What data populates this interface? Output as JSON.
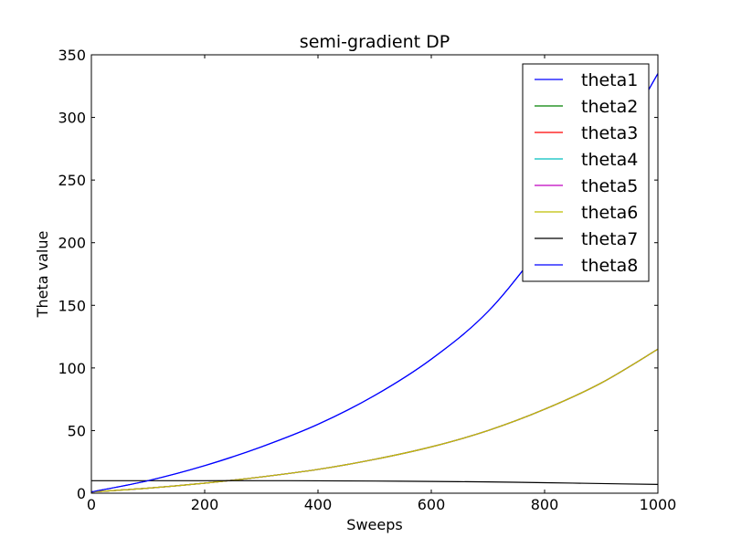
{
  "chart_data": {
    "type": "line",
    "title": "semi-gradient DP",
    "xlabel": "Sweeps",
    "ylabel": "Theta value",
    "xlim": [
      0,
      1000
    ],
    "ylim": [
      0,
      350
    ],
    "xticks": [
      0,
      200,
      400,
      600,
      800,
      1000
    ],
    "yticks": [
      0,
      50,
      100,
      150,
      200,
      250,
      300,
      350
    ],
    "xtick_labels": [
      "0",
      "200",
      "400",
      "600",
      "800",
      "1000"
    ],
    "ytick_labels": [
      "0",
      "50",
      "100",
      "150",
      "200",
      "250",
      "300",
      "350"
    ],
    "grid": false,
    "legend_position": "top-right",
    "x": [
      0,
      100,
      200,
      300,
      400,
      500,
      600,
      700,
      800,
      900,
      1000
    ],
    "series": [
      {
        "name": "theta1",
        "color": "#0000ff",
        "values": [
          1,
          10,
          22,
          37,
          55,
          78,
          107,
          145,
          200,
          258,
          335
        ]
      },
      {
        "name": "theta2",
        "color": "#008000",
        "values": [
          1,
          4,
          8,
          13,
          19,
          27,
          37,
          50,
          67,
          88,
          115
        ]
      },
      {
        "name": "theta3",
        "color": "#ff0000",
        "values": [
          1,
          4,
          8,
          13,
          19,
          27,
          37,
          50,
          67,
          88,
          115
        ]
      },
      {
        "name": "theta4",
        "color": "#00bfbf",
        "values": [
          1,
          4,
          8,
          13,
          19,
          27,
          37,
          50,
          67,
          88,
          115
        ]
      },
      {
        "name": "theta5",
        "color": "#bf00bf",
        "values": [
          1,
          4,
          8,
          13,
          19,
          27,
          37,
          50,
          67,
          88,
          115
        ]
      },
      {
        "name": "theta6",
        "color": "#bfbf00",
        "values": [
          1,
          4,
          8,
          13,
          19,
          27,
          37,
          50,
          67,
          88,
          115
        ]
      },
      {
        "name": "theta7",
        "color": "#000000",
        "values": [
          10,
          10,
          10,
          10,
          9.9,
          9.7,
          9.4,
          9.0,
          8.4,
          7.7,
          7
        ]
      },
      {
        "name": "theta8",
        "color": "#0000ff",
        "values": [
          1,
          10,
          22,
          37,
          55,
          78,
          107,
          145,
          200,
          258,
          335
        ]
      }
    ]
  }
}
